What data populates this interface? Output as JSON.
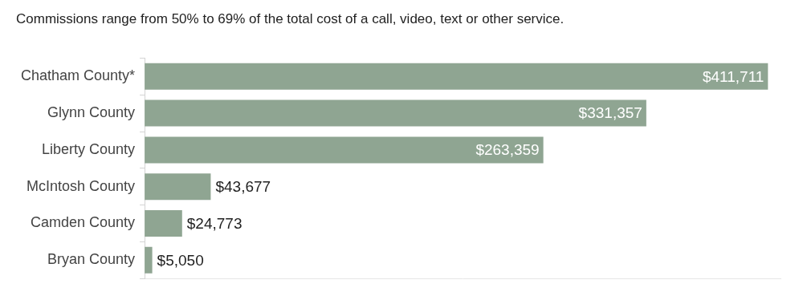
{
  "chart_data": {
    "type": "bar",
    "orientation": "horizontal",
    "title": "Commissions range from 50% to 69% of the total cost of a call, video, text or other service.",
    "categories": [
      "Chatham County*",
      "Glynn County",
      "Liberty County",
      "McIntosh County",
      "Camden County",
      "Bryan County"
    ],
    "values": [
      411711,
      331357,
      263359,
      43677,
      24773,
      5050
    ],
    "value_labels": [
      "$411,711",
      "$331,357",
      "$263,359",
      "$43,677",
      "$24,773",
      "$5,050"
    ],
    "color": "#8fa592",
    "xlim": [
      0,
      420000
    ],
    "grid": false,
    "data_labels": true,
    "tick_labels": "y"
  }
}
